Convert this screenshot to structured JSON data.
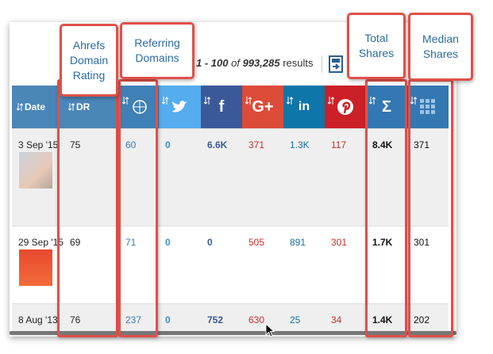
{
  "results": {
    "range": "1 - 100",
    "of": "of",
    "total": "993,285",
    "label": "results"
  },
  "header": {
    "date": "Date",
    "dr": "DR",
    "facebook": "f",
    "google_plus": "G+",
    "linkedin": "in",
    "total_shares": "Σ"
  },
  "rows": [
    {
      "date": "3 Sep '15",
      "dr": 75,
      "referring_domains": 60,
      "twitter": 0,
      "facebook": "6.6K",
      "google_plus": 371,
      "linkedin": "1.3K",
      "pinterest": 117,
      "total_shares": "8.4K",
      "median_shares": 371
    },
    {
      "date": "29 Sep '15",
      "dr": 69,
      "referring_domains": 71,
      "twitter": 0,
      "facebook": 0,
      "google_plus": 505,
      "linkedin": 891,
      "pinterest": 301,
      "total_shares": "1.7K",
      "median_shares": 301
    },
    {
      "date": "8 Aug '13",
      "dr": 76,
      "referring_domains": 237,
      "twitter": 0,
      "facebook": 752,
      "google_plus": 630,
      "linkedin": 25,
      "pinterest": 34,
      "total_shares": "1.4K",
      "median_shares": 202
    }
  ],
  "annotations": {
    "dr": "Ahrefs Domain Rating",
    "referring_domains": "Referring Domains",
    "total_shares": "Total Shares",
    "median_shares": "Median Shares"
  }
}
